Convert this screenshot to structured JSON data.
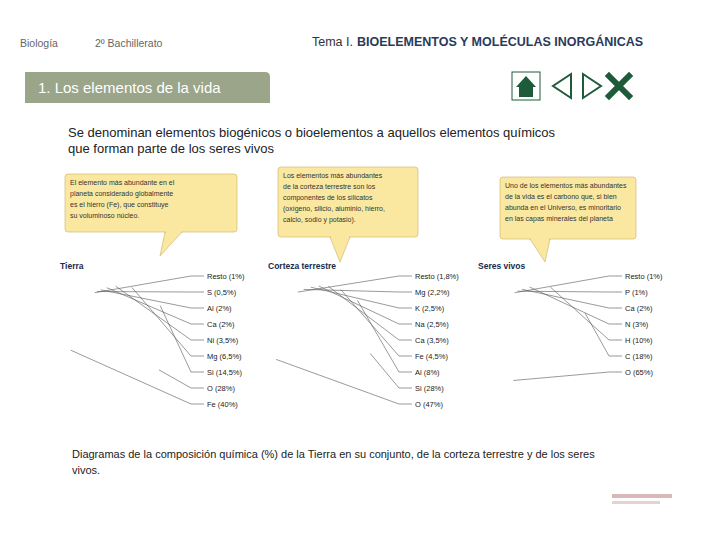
{
  "header": {
    "subject": "Biología",
    "course": "2º Bachillerato",
    "topic_prefix": "Tema I.",
    "topic": "BIOELEMENTOS Y MOLÉCULAS INORGÁNICAS"
  },
  "section": "1. Los elementos de la vida",
  "intro": [
    "Se denominan elementos biogénicos o bioelementos a aquellos elementos químicos",
    "que forman parte de los seres vivos"
  ],
  "caption": [
    "Diagramas de la composición química (%) de la Tierra en su conjunto, de la corteza terrestre y de los seres",
    "vivos."
  ],
  "chart_data": [
    {
      "type": "pie",
      "title": "Tierra",
      "categories": [
        "Resto (1%)",
        "S (0,5%)",
        "Al (2%)",
        "Ca (2%)",
        "Ni (3,5%)",
        "Mg (6,5%)",
        "Si (14,5%)",
        "O (28%)",
        "Fe (40%)"
      ],
      "values": [
        1,
        0.5,
        2,
        2,
        3.5,
        6.5,
        14.5,
        28,
        40
      ],
      "colors": [
        "#1a1a1a",
        "#f5e400",
        "#f2d53c",
        "#e8c87a",
        "#6a8fd0",
        "#1c2f73",
        "#2f4f9e",
        "#c4c4c4",
        "#e3202a"
      ],
      "annotations": [
        "El elemento más abundante en el",
        "planeta considerado globalmente",
        "es el hierro (Fe), que constituye",
        "su voluminoso núcleo."
      ]
    },
    {
      "type": "pie",
      "title": "Corteza terrestre",
      "categories": [
        "Resto (1,8%)",
        "Mg (2,2%)",
        "K (2,5%)",
        "Na (2,5%)",
        "Ca (3,5%)",
        "Fe (4,5%)",
        "Al (8%)",
        "Si (28%)",
        "O (47%)"
      ],
      "values": [
        1.8,
        2.2,
        2.5,
        2.5,
        3.5,
        4.5,
        8,
        28,
        47
      ],
      "colors": [
        "#222222",
        "#9bbf3a",
        "#c0d84a",
        "#e8d84a",
        "#f0e6a0",
        "#e6e6ef",
        "#3d5fb0",
        "#c8c8c8",
        "#e3202a"
      ],
      "annotations": [
        "Los elementos más abundantes",
        "de la corteza terrestre son los",
        "componentes de los silicatos",
        "(oxígeno, silicio, aluminio, hierro,",
        "calcio, sodio y potasio)."
      ]
    },
    {
      "type": "pie",
      "title": "Seres vivos",
      "categories": [
        "Resto (1%)",
        "P (1%)",
        "Ca (2%)",
        "N (3%)",
        "H (10%)",
        "C (18%)",
        "O (65%)"
      ],
      "values": [
        1,
        1,
        2,
        3,
        10,
        18,
        65
      ],
      "colors": [
        "#222222",
        "#f5e400",
        "#f2d060",
        "#2f5fb5",
        "#d0d0d0",
        "#3b4650",
        "#e3202a"
      ],
      "annotations": [
        "Uno de los elementos más abundantes",
        "de la vida es el carbono que, si bien",
        "abunda en el Universo, es minoritario",
        "en las capas minerales del planeta"
      ]
    }
  ]
}
